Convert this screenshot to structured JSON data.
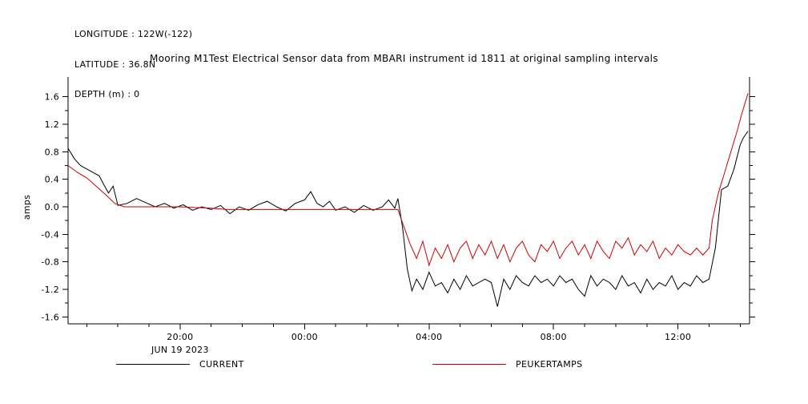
{
  "header": {
    "longitude": "LONGITUDE : 122W(-122)",
    "latitude": "LATITUDE : 36.8N",
    "depth": "DEPTH (m) : 0"
  },
  "title": "Mooring M1Test Electrical Sensor data from MBARI instrument id 1811 at original sampling intervals",
  "chart_data": {
    "type": "line",
    "title": "Mooring M1Test Electrical Sensor data from MBARI instrument id 1811 at original sampling intervals",
    "ylabel": "amps",
    "xlabel_date": "JUN 19 2023",
    "ylim": [
      -1.7,
      1.7
    ],
    "yticks": [
      -1.6,
      -1.2,
      -0.8,
      -0.4,
      0.0,
      0.4,
      0.8,
      1.2,
      1.6
    ],
    "ytick_labels": [
      "-1.6",
      "-1.2",
      "-0.8",
      "-0.4",
      "0.0",
      "0.4",
      "0.8",
      "1.2",
      "1.6"
    ],
    "xlim_hours": [
      16.4,
      38.3
    ],
    "xticks_hours": [
      20,
      24,
      28,
      32,
      36
    ],
    "xtick_labels": [
      "20:00",
      "00:00",
      "04:00",
      "08:00",
      "12:00"
    ],
    "grid": false,
    "legend_position": "bottom",
    "legend": [
      {
        "label": "CURRENT",
        "color": "#000000"
      },
      {
        "label": "PEUKERTAMPS",
        "color": "#cc0000"
      }
    ],
    "series": [
      {
        "name": "CURRENT",
        "color": "#000000",
        "x": [
          16.4,
          16.6,
          16.8,
          17.0,
          17.2,
          17.4,
          17.55,
          17.7,
          17.85,
          18.0,
          18.3,
          18.6,
          18.9,
          19.2,
          19.5,
          19.8,
          20.1,
          20.4,
          20.7,
          21.0,
          21.3,
          21.6,
          21.9,
          22.2,
          22.5,
          22.8,
          23.1,
          23.4,
          23.7,
          24.0,
          24.2,
          24.4,
          24.6,
          24.8,
          25.0,
          25.3,
          25.6,
          25.9,
          26.2,
          26.5,
          26.7,
          26.9,
          27.0,
          27.15,
          27.3,
          27.45,
          27.6,
          27.8,
          28.0,
          28.2,
          28.4,
          28.6,
          28.8,
          29.0,
          29.2,
          29.4,
          29.6,
          29.8,
          30.0,
          30.2,
          30.4,
          30.6,
          30.8,
          31.0,
          31.2,
          31.4,
          31.6,
          31.8,
          32.0,
          32.2,
          32.4,
          32.6,
          32.8,
          33.0,
          33.2,
          33.4,
          33.6,
          33.8,
          34.0,
          34.2,
          34.4,
          34.6,
          34.8,
          35.0,
          35.2,
          35.4,
          35.6,
          35.8,
          36.0,
          36.2,
          36.4,
          36.6,
          36.8,
          37.0,
          37.2,
          37.4,
          37.6,
          37.8,
          38.0,
          38.1,
          38.25
        ],
        "y": [
          0.85,
          0.7,
          0.6,
          0.55,
          0.5,
          0.45,
          0.32,
          0.2,
          0.3,
          0.02,
          0.05,
          0.12,
          0.06,
          0.0,
          0.05,
          -0.02,
          0.03,
          -0.05,
          0.0,
          -0.04,
          0.02,
          -0.1,
          0.0,
          -0.05,
          0.03,
          0.08,
          0.0,
          -0.06,
          0.05,
          0.1,
          0.22,
          0.05,
          0.0,
          0.08,
          -0.05,
          0.0,
          -0.08,
          0.02,
          -0.05,
          0.0,
          0.1,
          -0.02,
          0.12,
          -0.3,
          -0.9,
          -1.22,
          -1.05,
          -1.2,
          -0.95,
          -1.15,
          -1.1,
          -1.25,
          -1.05,
          -1.2,
          -1.0,
          -1.15,
          -1.1,
          -1.05,
          -1.1,
          -1.45,
          -1.05,
          -1.2,
          -1.0,
          -1.1,
          -1.15,
          -1.0,
          -1.1,
          -1.05,
          -1.15,
          -1.0,
          -1.1,
          -1.05,
          -1.2,
          -1.3,
          -1.0,
          -1.15,
          -1.05,
          -1.1,
          -1.2,
          -1.0,
          -1.15,
          -1.1,
          -1.25,
          -1.05,
          -1.2,
          -1.1,
          -1.15,
          -1.0,
          -1.2,
          -1.1,
          -1.15,
          -1.0,
          -1.1,
          -1.05,
          -0.6,
          0.25,
          0.3,
          0.55,
          0.9,
          1.0,
          1.1
        ]
      },
      {
        "name": "PEUKERTAMPS",
        "color": "#cc0000",
        "x": [
          16.4,
          16.7,
          17.0,
          17.3,
          17.6,
          17.9,
          18.2,
          19.0,
          20.0,
          21.0,
          21.5,
          22.5,
          23.5,
          24.5,
          25.5,
          26.5,
          27.0,
          27.2,
          27.4,
          27.6,
          27.8,
          28.0,
          28.2,
          28.4,
          28.6,
          28.8,
          29.0,
          29.2,
          29.4,
          29.6,
          29.8,
          30.0,
          30.2,
          30.4,
          30.6,
          30.8,
          31.0,
          31.2,
          31.4,
          31.6,
          31.8,
          32.0,
          32.2,
          32.4,
          32.6,
          32.8,
          33.0,
          33.2,
          33.4,
          33.6,
          33.8,
          34.0,
          34.2,
          34.4,
          34.6,
          34.8,
          35.0,
          35.2,
          35.4,
          35.6,
          35.8,
          36.0,
          36.2,
          36.4,
          36.6,
          36.8,
          37.0,
          37.1,
          37.3,
          37.5,
          37.7,
          37.9,
          38.05,
          38.25
        ],
        "y": [
          0.6,
          0.5,
          0.42,
          0.3,
          0.18,
          0.05,
          0.0,
          0.0,
          0.0,
          -0.02,
          -0.04,
          -0.04,
          -0.04,
          -0.04,
          -0.04,
          -0.04,
          -0.04,
          -0.3,
          -0.55,
          -0.75,
          -0.5,
          -0.85,
          -0.6,
          -0.75,
          -0.55,
          -0.8,
          -0.6,
          -0.5,
          -0.75,
          -0.55,
          -0.7,
          -0.5,
          -0.75,
          -0.55,
          -0.8,
          -0.6,
          -0.5,
          -0.7,
          -0.8,
          -0.55,
          -0.65,
          -0.5,
          -0.75,
          -0.6,
          -0.5,
          -0.7,
          -0.55,
          -0.75,
          -0.5,
          -0.65,
          -0.75,
          -0.5,
          -0.6,
          -0.45,
          -0.7,
          -0.55,
          -0.65,
          -0.5,
          -0.75,
          -0.6,
          -0.7,
          -0.55,
          -0.65,
          -0.7,
          -0.6,
          -0.7,
          -0.6,
          -0.2,
          0.2,
          0.5,
          0.8,
          1.1,
          1.35,
          1.65
        ]
      }
    ]
  }
}
